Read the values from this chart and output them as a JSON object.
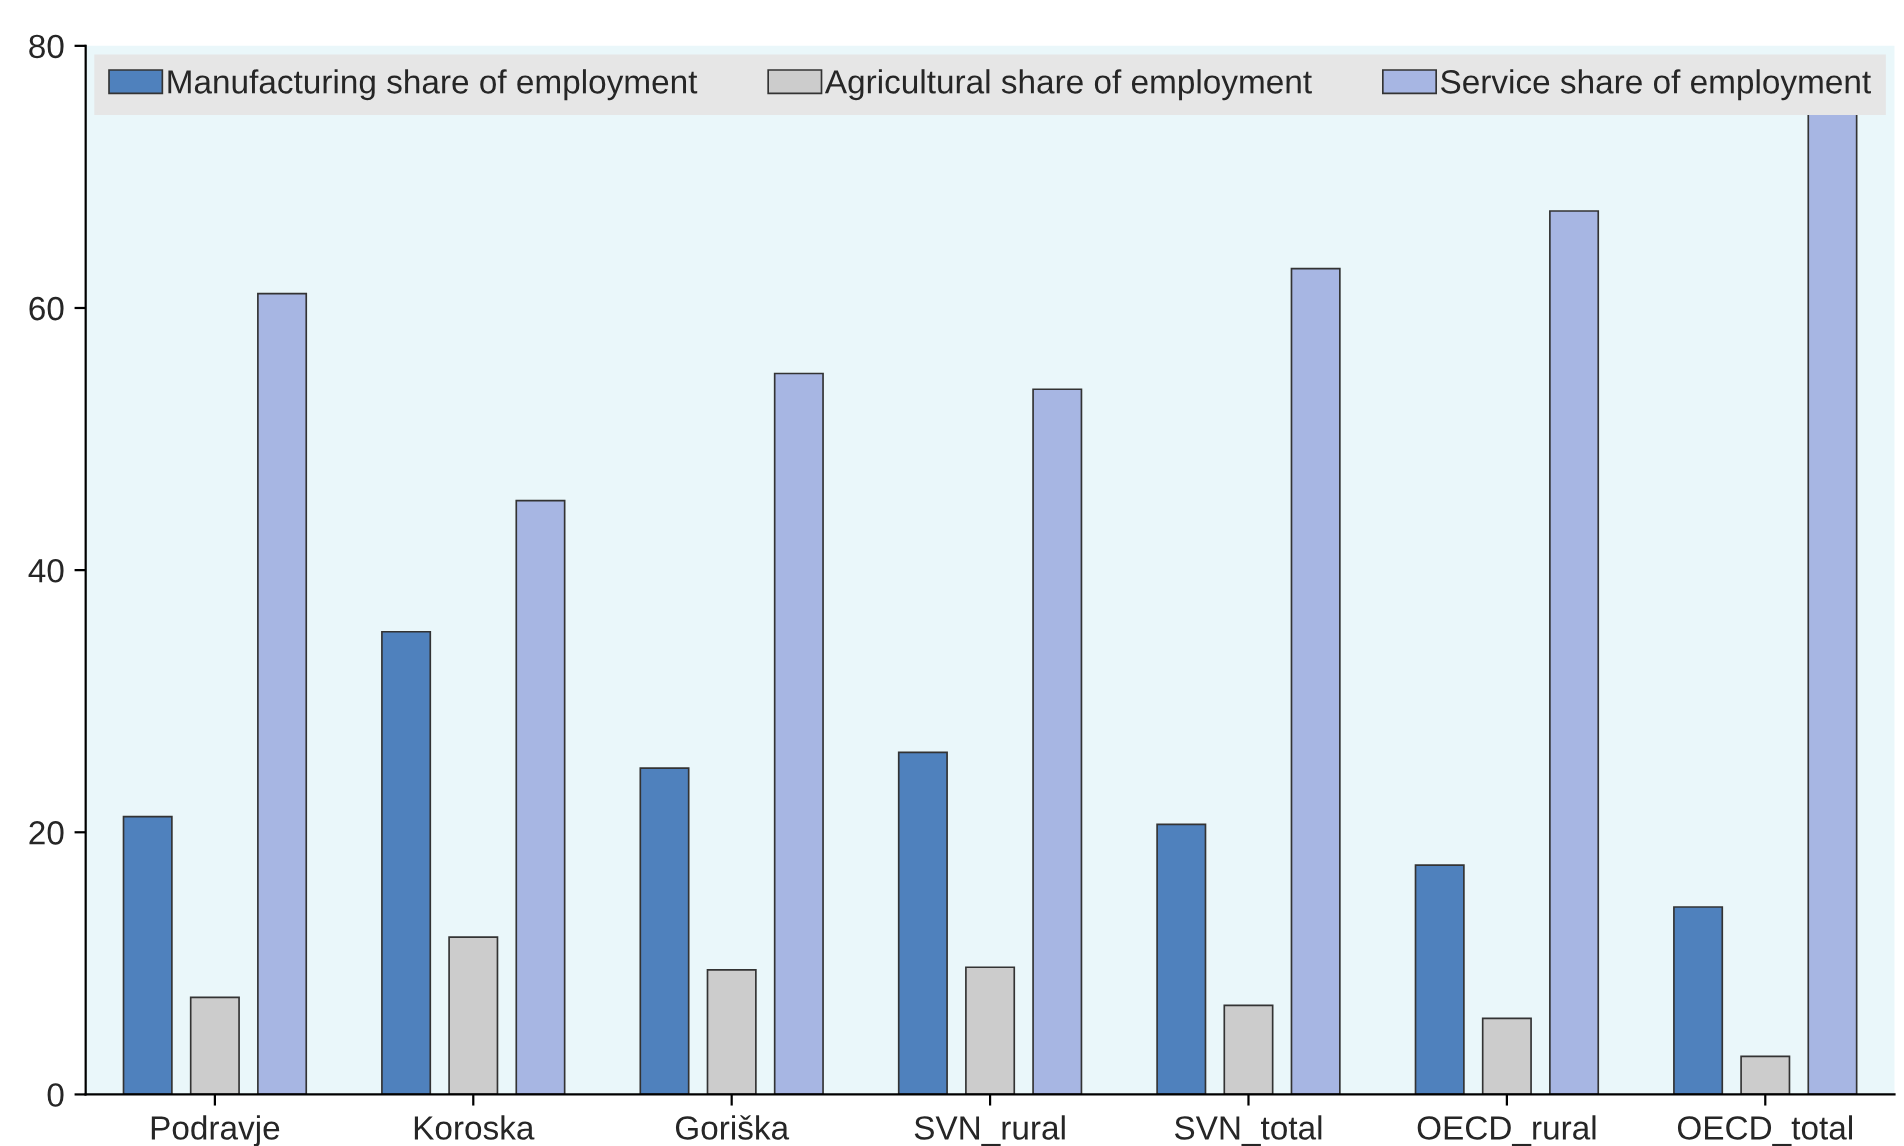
{
  "chart_data": {
    "type": "bar",
    "categories": [
      "Podravje",
      "Koroska",
      "Goriška",
      "SVN_rural",
      "SVN_total",
      "OECD_rural",
      "OECD_total"
    ],
    "series": [
      {
        "name": "Manufacturing share of employment",
        "color": "#4f81bd",
        "values": [
          21.2,
          35.3,
          24.9,
          26.1,
          20.6,
          17.5,
          14.3
        ]
      },
      {
        "name": "Agricultural share of employment",
        "color": "#cccccc",
        "values": [
          7.4,
          12.0,
          9.5,
          9.7,
          6.8,
          5.8,
          2.9
        ]
      },
      {
        "name": "Service share of employment",
        "color": "#a7b6e3",
        "values": [
          61.1,
          45.3,
          55.0,
          53.8,
          63.0,
          67.4,
          75.0
        ]
      }
    ],
    "ylim": [
      0,
      80
    ],
    "yticks": [
      0,
      20,
      40,
      60,
      80
    ],
    "grid": false,
    "legend": "top"
  }
}
